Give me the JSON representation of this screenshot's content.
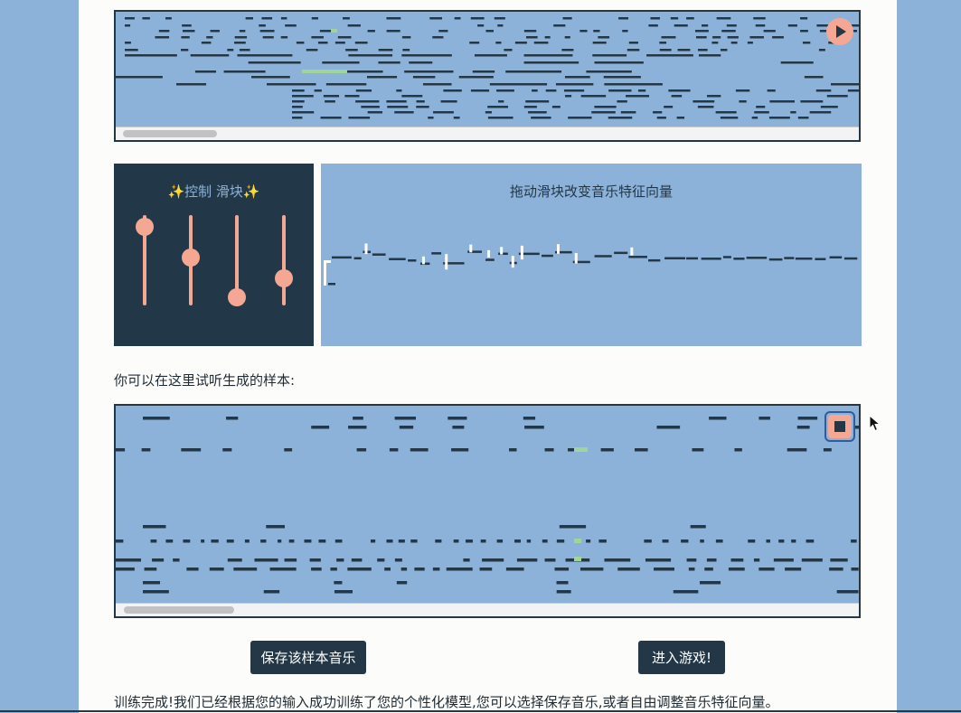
{
  "roll_top": {
    "scroll_position": 0.12
  },
  "sliders": {
    "title": "✨控制  滑块✨",
    "levels": [
      0.87,
      0.53,
      0.09,
      0.3
    ]
  },
  "vector_panel": {
    "title": "拖动滑块改变音乐特征向量"
  },
  "listen_label": "你可以在这里试听生成的样本:",
  "roll_sample": {
    "scroll_position": 0.15
  },
  "buttons": {
    "save": "保存该样本音乐",
    "enter_game": "进入游戏!"
  },
  "footer_text": "训练完成!我们已经根据您的输入成功训练了您的个性化模型,您可以选择保存音乐,或者自由调整音乐特征向量。",
  "colors": {
    "accent": "#f4a793",
    "dark": "#233747",
    "panel_blue": "#8cb2da",
    "highlight_note": "#9fd59a"
  },
  "icons": {
    "play": "play-icon",
    "stop": "stop-icon",
    "cursor": "mouse-pointer-icon"
  }
}
